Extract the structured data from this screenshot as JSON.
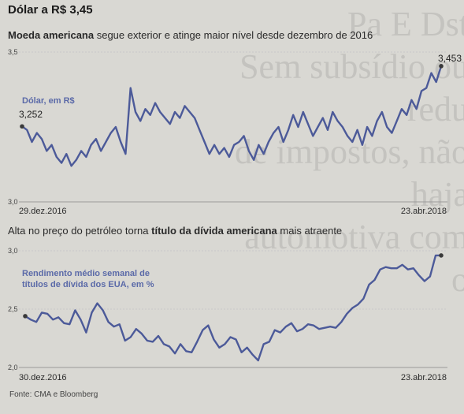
{
  "background_text": "Pa E Dst\nSem subsídio ou redu\nde impostos, não haja\nautomotiva com o",
  "headline": "Dólar a R$ 3,45",
  "subheadline": {
    "bold": "Moeda americana",
    "rest": " segue exterior e atinge maior nível desde dezembro de 2016"
  },
  "section2_title": {
    "before": "Alta no preço do petróleo torna ",
    "bold": "título da dívida americana",
    "after": " mais atraente"
  },
  "source": "Fonte: CMA e Bloomberg",
  "colors": {
    "line": "#4c5a99",
    "label": "#5b6aa8",
    "axis": "#9a9a9a",
    "grid": "#c9c9c9"
  },
  "chart_data": [
    {
      "type": "line",
      "series_label": "Dólar, em R$",
      "x_start_label": "29.dez.2016",
      "x_end_label": "23.abr.2018",
      "ylim": [
        3.0,
        3.5
      ],
      "yticks": [
        "3,5",
        "3,0"
      ],
      "start_label": "3,252",
      "end_label": "3,453",
      "series": [
        {
          "name": "Dólar, em R$",
          "values": [
            3.252,
            3.24,
            3.2,
            3.23,
            3.21,
            3.17,
            3.19,
            3.15,
            3.13,
            3.16,
            3.12,
            3.14,
            3.17,
            3.15,
            3.19,
            3.21,
            3.17,
            3.2,
            3.23,
            3.25,
            3.2,
            3.16,
            3.38,
            3.3,
            3.27,
            3.31,
            3.29,
            3.33,
            3.3,
            3.28,
            3.26,
            3.3,
            3.28,
            3.32,
            3.3,
            3.28,
            3.24,
            3.2,
            3.16,
            3.19,
            3.16,
            3.18,
            3.15,
            3.19,
            3.2,
            3.22,
            3.17,
            3.14,
            3.19,
            3.16,
            3.2,
            3.23,
            3.25,
            3.2,
            3.24,
            3.29,
            3.25,
            3.3,
            3.26,
            3.22,
            3.25,
            3.28,
            3.24,
            3.3,
            3.27,
            3.25,
            3.22,
            3.2,
            3.24,
            3.19,
            3.25,
            3.22,
            3.27,
            3.3,
            3.25,
            3.23,
            3.27,
            3.31,
            3.29,
            3.34,
            3.31,
            3.37,
            3.38,
            3.43,
            3.4,
            3.453
          ]
        }
      ]
    },
    {
      "type": "line",
      "series_label": "Rendimento médio semanal de\ntítulos de dívida dos EUA, em %",
      "x_start_label": "30.dez.2016",
      "x_end_label": "23.abr.2018",
      "ylim": [
        2.0,
        3.0
      ],
      "yticks": [
        "3,0",
        "2,5",
        "2,0"
      ],
      "series": [
        {
          "name": "Rendimento médio semanal de títulos de dívida dos EUA, em %",
          "values": [
            2.44,
            2.41,
            2.39,
            2.47,
            2.46,
            2.41,
            2.43,
            2.38,
            2.37,
            2.49,
            2.41,
            2.3,
            2.47,
            2.55,
            2.49,
            2.39,
            2.35,
            2.37,
            2.23,
            2.26,
            2.33,
            2.29,
            2.23,
            2.22,
            2.27,
            2.2,
            2.18,
            2.12,
            2.2,
            2.14,
            2.13,
            2.22,
            2.32,
            2.36,
            2.24,
            2.17,
            2.2,
            2.26,
            2.24,
            2.13,
            2.17,
            2.11,
            2.06,
            2.2,
            2.22,
            2.32,
            2.3,
            2.35,
            2.38,
            2.31,
            2.33,
            2.37,
            2.36,
            2.33,
            2.34,
            2.35,
            2.34,
            2.39,
            2.46,
            2.51,
            2.54,
            2.59,
            2.71,
            2.75,
            2.84,
            2.86,
            2.85,
            2.85,
            2.88,
            2.84,
            2.85,
            2.79,
            2.74,
            2.78,
            2.96,
            2.96
          ]
        }
      ]
    }
  ]
}
